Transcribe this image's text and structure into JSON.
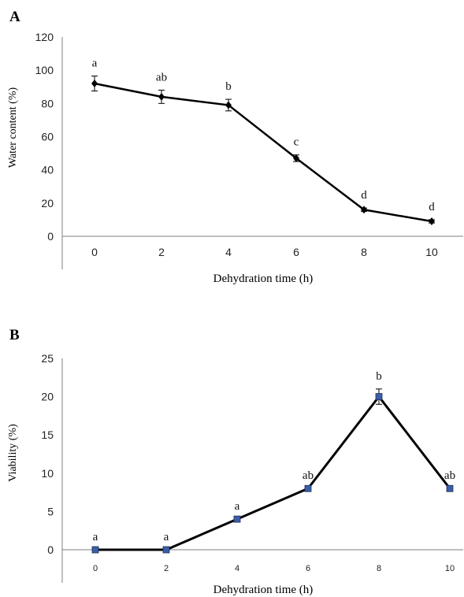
{
  "chart_data": [
    {
      "panel_label": "A",
      "type": "line",
      "x": [
        0,
        2,
        4,
        6,
        8,
        10
      ],
      "xlabel": "Dehydration time (h)",
      "ylabel": "Water content (%)",
      "ylim": [
        0,
        120
      ],
      "yticks": [
        "0",
        "20",
        "40",
        "60",
        "80",
        "100",
        "120"
      ],
      "xticks": [
        "0",
        "2",
        "4",
        "6",
        "8",
        "10"
      ],
      "series": [
        {
          "values": [
            92,
            84,
            79,
            47,
            16,
            9
          ],
          "errors": [
            4.5,
            4,
            3.5,
            2,
            1,
            1
          ],
          "letters": [
            "a",
            "ab",
            "b",
            "c",
            "d",
            "d"
          ],
          "color": "#000000",
          "marker": "diamond"
        }
      ],
      "grid": false
    },
    {
      "panel_label": "B",
      "type": "line",
      "x": [
        0,
        2,
        4,
        6,
        8,
        10
      ],
      "xlabel": "Dehydration time (h)",
      "ylabel": "Viability (%)",
      "ylim": [
        0,
        25
      ],
      "yticks": [
        "0",
        "5",
        "10",
        "15",
        "20",
        "25"
      ],
      "xticks": [
        "0",
        "2",
        "4",
        "6",
        "8",
        "10"
      ],
      "series": [
        {
          "values": [
            0,
            0,
            4,
            8,
            20,
            8
          ],
          "errors": [
            0,
            0,
            0,
            0,
            1,
            0
          ],
          "letters": [
            "a",
            "a",
            "a",
            "ab",
            "b",
            "ab"
          ],
          "color": "#000000",
          "marker_color": "#3b5ea8",
          "marker": "square"
        }
      ],
      "grid": false
    }
  ]
}
